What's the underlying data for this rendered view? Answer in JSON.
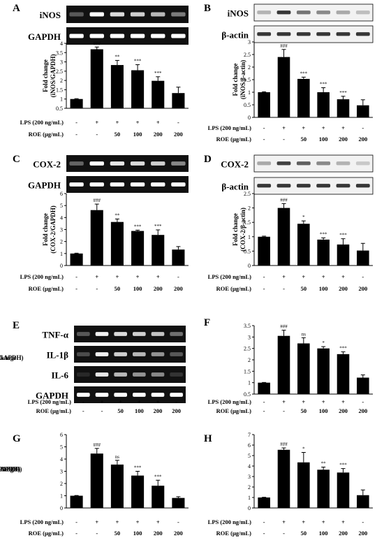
{
  "figure": {
    "lps_label": "LPS (200 ng/mL)",
    "roe_label": "ROE (μg/mL)",
    "lps_row": [
      "-",
      "+",
      "+",
      "+",
      "+",
      "-"
    ],
    "roe_row": [
      "-",
      "-",
      "50",
      "100",
      "200",
      "200"
    ]
  },
  "colors": {
    "bar": "#000000",
    "background": "#ffffff",
    "gel_dark": "#111111",
    "gel_band": "#ffffff",
    "wb_band": "#222222"
  },
  "chart_data": [
    {
      "panel": "A",
      "type": "bar",
      "blot": {
        "kind": "gel",
        "rows": [
          {
            "label": "iNOS",
            "intensity": [
              0.3,
              1.0,
              0.85,
              0.8,
              0.7,
              0.45
            ]
          },
          {
            "label": "GAPDH",
            "intensity": [
              1,
              1,
              1,
              1,
              1,
              1
            ]
          }
        ]
      },
      "ylabel": [
        "Fold change",
        "(iNOS/GAPDH)"
      ],
      "ylim": [
        0.5,
        4
      ],
      "yticks": [
        "0.5",
        "1",
        "1.5",
        "2",
        "2.5",
        "3",
        "3.5",
        "4"
      ],
      "values": [
        1.0,
        3.68,
        2.83,
        2.55,
        1.98,
        1.32
      ],
      "errors": [
        0.02,
        0.12,
        0.25,
        0.3,
        0.22,
        0.32
      ],
      "sig": [
        "",
        "###",
        "**",
        "***",
        "***",
        ""
      ]
    },
    {
      "panel": "B",
      "type": "bar",
      "blot": {
        "kind": "wb",
        "rows": [
          {
            "label": "iNOS",
            "intensity": [
              0.3,
              0.9,
              0.6,
              0.5,
              0.35,
              0.25
            ]
          },
          {
            "label": "β-actin",
            "intensity": [
              0.9,
              0.9,
              0.9,
              0.9,
              0.9,
              0.9
            ]
          }
        ]
      },
      "ylabel": [
        "Fold change",
        "(iNOS/β-actin)"
      ],
      "ylim": [
        0,
        3
      ],
      "yticks": [
        "0",
        "0.5",
        "1",
        "1.5",
        "2",
        "2.5",
        "3"
      ],
      "values": [
        1.0,
        2.4,
        1.53,
        1.0,
        0.72,
        0.48
      ],
      "errors": [
        0.02,
        0.3,
        0.07,
        0.18,
        0.12,
        0.22
      ],
      "sig": [
        "",
        "###",
        "***",
        "***",
        "***",
        ""
      ]
    },
    {
      "panel": "C",
      "type": "bar",
      "blot": {
        "kind": "gel",
        "rows": [
          {
            "label": "COX-2",
            "intensity": [
              0.35,
              1.0,
              0.9,
              0.85,
              0.8,
              0.5
            ]
          },
          {
            "label": "GAPDH",
            "intensity": [
              1,
              1,
              1,
              1,
              1,
              1
            ]
          }
        ]
      },
      "ylabel": [
        "Fold change",
        "(COX-2/GAPDH)"
      ],
      "ylim": [
        0,
        6
      ],
      "yticks": [
        "0",
        "1",
        "2",
        "3",
        "4",
        "5",
        "6"
      ],
      "values": [
        1.0,
        4.62,
        3.63,
        2.88,
        2.55,
        1.33
      ],
      "errors": [
        0.03,
        0.5,
        0.25,
        0.07,
        0.42,
        0.25
      ],
      "sig": [
        "",
        "###",
        "**",
        "***",
        "***",
        ""
      ]
    },
    {
      "panel": "D",
      "type": "bar",
      "blot": {
        "kind": "wb",
        "rows": [
          {
            "label": "COX-2",
            "intensity": [
              0.35,
              0.85,
              0.7,
              0.5,
              0.3,
              0.2
            ]
          },
          {
            "label": "β-actin",
            "intensity": [
              0.9,
              0.9,
              0.9,
              0.9,
              0.9,
              0.9
            ]
          }
        ]
      },
      "ylabel": [
        "Fold change",
        "(COX-2/β-actin)"
      ],
      "ylim": [
        0,
        2.5
      ],
      "yticks": [
        "0",
        "0.5",
        "1",
        "1.5",
        "2",
        "2.5"
      ],
      "values": [
        1.0,
        2.0,
        1.45,
        0.9,
        0.73,
        0.52
      ],
      "errors": [
        0.02,
        0.15,
        0.1,
        0.06,
        0.2,
        0.25
      ],
      "sig": [
        "",
        "###",
        "*",
        "***",
        "***",
        ""
      ]
    },
    {
      "panel": "F",
      "type": "bar",
      "ylabel": [
        "Fold change",
        "(TNF-α/GAPDH)"
      ],
      "ylim": [
        0.5,
        3.5
      ],
      "yticks": [
        "0.5",
        "1",
        "1.5",
        "2",
        "2.5",
        "3",
        "3.5"
      ],
      "values": [
        1.0,
        3.05,
        2.72,
        2.5,
        2.25,
        1.22
      ],
      "errors": [
        0.01,
        0.25,
        0.25,
        0.08,
        0.1,
        0.12
      ],
      "sig": [
        "",
        "###",
        "ns",
        "*",
        "***",
        ""
      ]
    },
    {
      "panel": "G",
      "type": "bar",
      "ylabel": [
        "Fold change",
        "(IL-1β/GAPDH)"
      ],
      "ylim": [
        0,
        6
      ],
      "yticks": [
        "0",
        "1",
        "2",
        "3",
        "4",
        "5",
        "6"
      ],
      "values": [
        1.0,
        4.45,
        3.55,
        2.65,
        1.82,
        0.82
      ],
      "errors": [
        0.02,
        0.42,
        0.35,
        0.35,
        0.45,
        0.1
      ],
      "sig": [
        "",
        "###",
        "ns",
        "***",
        "***",
        ""
      ]
    },
    {
      "panel": "H",
      "type": "bar",
      "ylabel": [
        "Fold change",
        "(IL-6/GAPDH)"
      ],
      "ylim": [
        0,
        7
      ],
      "yticks": [
        "0",
        "1",
        "2",
        "3",
        "4",
        "5",
        "6",
        "7"
      ],
      "values": [
        1.0,
        5.55,
        4.35,
        3.65,
        3.38,
        1.22
      ],
      "errors": [
        0.02,
        0.18,
        0.95,
        0.25,
        0.38,
        0.5
      ],
      "sig": [
        "",
        "###",
        "*",
        "**",
        "***",
        ""
      ]
    }
  ],
  "blot_e": {
    "panel": "E",
    "rows": [
      {
        "label": "TNF-α",
        "intensity": [
          0.3,
          0.95,
          0.85,
          0.8,
          0.75,
          0.4
        ]
      },
      {
        "label": "IL-1β",
        "intensity": [
          0.25,
          0.95,
          0.8,
          0.7,
          0.55,
          0.3
        ]
      },
      {
        "label": "IL-6",
        "intensity": [
          0.1,
          0.9,
          0.7,
          0.55,
          0.5,
          0.15
        ]
      },
      {
        "label": "GAPDH",
        "intensity": [
          1,
          1,
          1,
          1,
          1,
          1
        ]
      }
    ]
  }
}
